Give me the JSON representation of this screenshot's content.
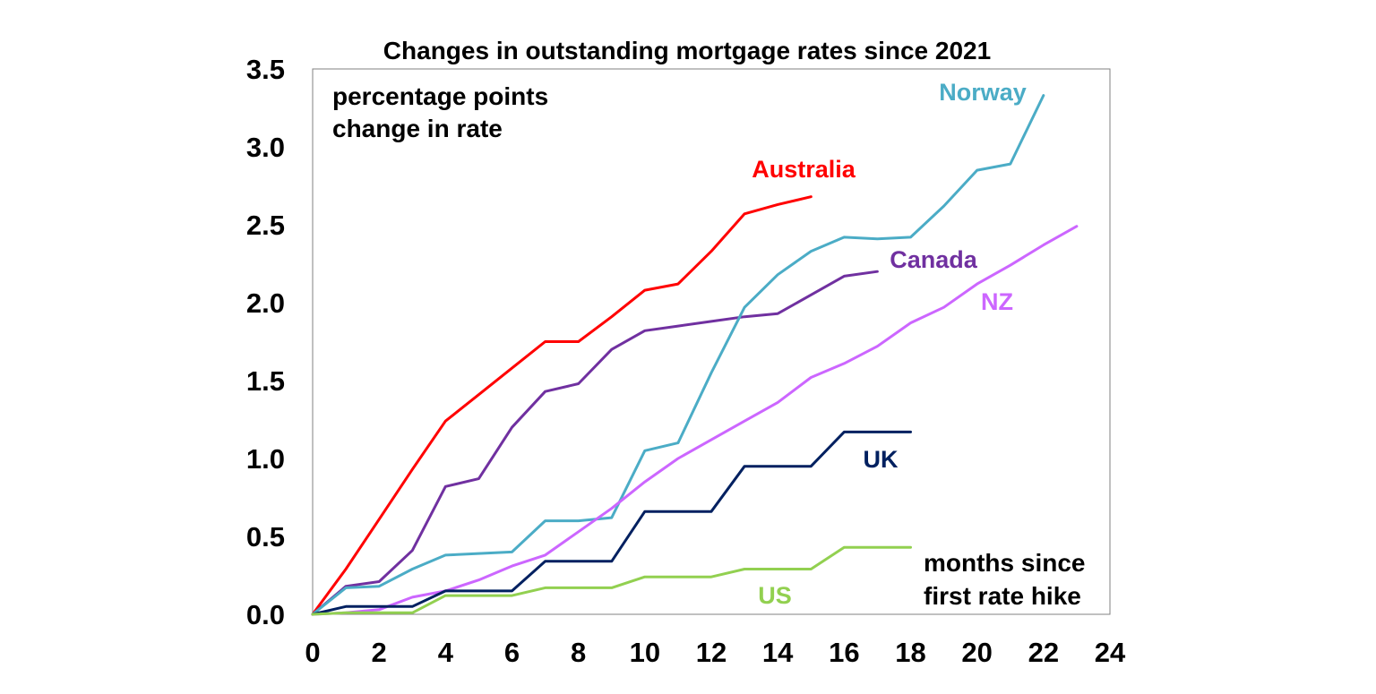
{
  "chart_data": {
    "type": "line",
    "title": "Changes in outstanding mortgage rates since 2021",
    "annotations": {
      "ylabel_line1": "percentage points",
      "ylabel_line2": "change in rate",
      "xlabel_line1": "months since",
      "xlabel_line2": "first rate hike"
    },
    "xlim": [
      0,
      24
    ],
    "ylim": [
      0,
      3.5
    ],
    "x_ticks": [
      "0",
      "2",
      "4",
      "6",
      "8",
      "10",
      "12",
      "14",
      "16",
      "18",
      "20",
      "22",
      "24"
    ],
    "y_ticks": [
      "0.0",
      "0.5",
      "1.0",
      "1.5",
      "2.0",
      "2.5",
      "3.0",
      "3.5"
    ],
    "grid": false,
    "series": [
      {
        "name": "Australia",
        "color": "#ff0000",
        "x": [
          0,
          1,
          2,
          3,
          4,
          5,
          6,
          7,
          8,
          9,
          10,
          11,
          12,
          13,
          14,
          15
        ],
        "y": [
          0,
          0.29,
          0.61,
          0.93,
          1.24,
          1.41,
          1.58,
          1.75,
          1.75,
          1.91,
          2.08,
          2.12,
          2.33,
          2.57,
          2.63,
          2.68
        ]
      },
      {
        "name": "Canada",
        "color": "#7030a0",
        "x": [
          0,
          1,
          2,
          3,
          4,
          5,
          6,
          7,
          8,
          9,
          10,
          11,
          12,
          13,
          14,
          15,
          16,
          17
        ],
        "y": [
          0,
          0.18,
          0.21,
          0.41,
          0.82,
          0.87,
          1.2,
          1.43,
          1.48,
          1.7,
          1.82,
          1.85,
          1.88,
          1.91,
          1.93,
          2.05,
          2.17,
          2.2
        ]
      },
      {
        "name": "Norway",
        "color": "#4bacc6",
        "x": [
          0,
          1,
          2,
          3,
          4,
          5,
          6,
          7,
          8,
          9,
          10,
          11,
          12,
          13,
          14,
          15,
          16,
          17,
          18,
          19,
          20,
          21,
          22
        ],
        "y": [
          0,
          0.17,
          0.18,
          0.29,
          0.38,
          0.39,
          0.4,
          0.6,
          0.6,
          0.62,
          1.05,
          1.1,
          1.55,
          1.97,
          2.18,
          2.33,
          2.42,
          2.41,
          2.42,
          2.62,
          2.85,
          2.89,
          3.33
        ]
      },
      {
        "name": "NZ",
        "color": "#cc66ff",
        "x": [
          0,
          1,
          2,
          3,
          4,
          5,
          6,
          7,
          8,
          9,
          10,
          11,
          12,
          13,
          14,
          15,
          16,
          17,
          18,
          19,
          20,
          21,
          22,
          23
        ],
        "y": [
          0,
          0.01,
          0.03,
          0.11,
          0.15,
          0.22,
          0.31,
          0.38,
          0.53,
          0.68,
          0.85,
          1.0,
          1.12,
          1.24,
          1.36,
          1.52,
          1.61,
          1.72,
          1.87,
          1.97,
          2.12,
          2.24,
          2.37,
          2.49
        ]
      },
      {
        "name": "UK",
        "color": "#002060",
        "x": [
          0,
          1,
          2,
          3,
          4,
          5,
          6,
          7,
          8,
          9,
          10,
          11,
          12,
          13,
          14,
          15,
          16,
          17,
          18
        ],
        "y": [
          0,
          0.05,
          0.05,
          0.05,
          0.15,
          0.15,
          0.15,
          0.34,
          0.34,
          0.34,
          0.66,
          0.66,
          0.66,
          0.95,
          0.95,
          0.95,
          1.17,
          1.17,
          1.17
        ]
      },
      {
        "name": "US",
        "color": "#92d050",
        "x": [
          0,
          1,
          2,
          3,
          4,
          5,
          6,
          7,
          8,
          9,
          10,
          11,
          12,
          13,
          14,
          15,
          16,
          17,
          18
        ],
        "y": [
          0,
          0.01,
          0.01,
          0.01,
          0.12,
          0.12,
          0.12,
          0.17,
          0.17,
          0.17,
          0.24,
          0.24,
          0.24,
          0.29,
          0.29,
          0.29,
          0.43,
          0.43,
          0.43
        ]
      }
    ]
  }
}
